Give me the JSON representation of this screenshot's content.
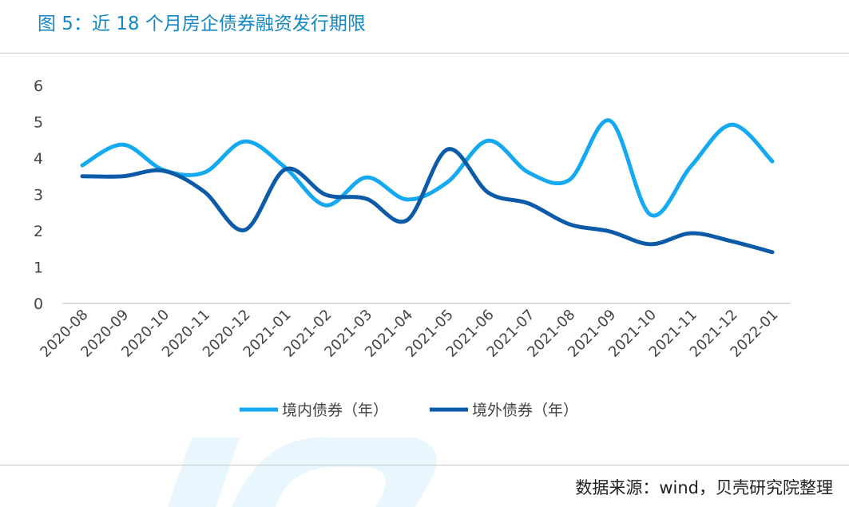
{
  "title": "图 5：近 18 个月房企债券融资发行期限",
  "source": "数据来源：wind，贝壳研究院整理",
  "chart_data": {
    "type": "line",
    "title": "图 5：近 18 个月房企债券融资发行期限",
    "xlabel": "",
    "ylabel": "",
    "ylim": [
      0,
      6
    ],
    "yticks": [
      "0",
      "1",
      "2",
      "3",
      "4",
      "5",
      "6"
    ],
    "grid": false,
    "legend_position": "bottom",
    "categories": [
      "2020-08",
      "2020-09",
      "2020-10",
      "2020-11",
      "2020-12",
      "2021-01",
      "2021-02",
      "2021-03",
      "2021-04",
      "2021-05",
      "2021-06",
      "2021-07",
      "2021-08",
      "2021-09",
      "2021-10",
      "2021-11",
      "2021-12",
      "2022-01"
    ],
    "series": [
      {
        "name": "境内债券（年）",
        "color": "#14a9f0",
        "values": [
          3.8,
          4.37,
          3.67,
          3.6,
          4.46,
          3.74,
          2.7,
          3.47,
          2.86,
          3.34,
          4.48,
          3.6,
          3.4,
          5.03,
          2.44,
          3.78,
          4.92,
          3.91
        ]
      },
      {
        "name": "境外债券（年）",
        "color": "#0b5ba8",
        "values": [
          3.5,
          3.5,
          3.65,
          3.08,
          2.02,
          3.69,
          2.99,
          2.88,
          2.29,
          4.24,
          3.05,
          2.75,
          2.18,
          1.98,
          1.63,
          1.93,
          1.71,
          1.41
        ]
      }
    ]
  }
}
